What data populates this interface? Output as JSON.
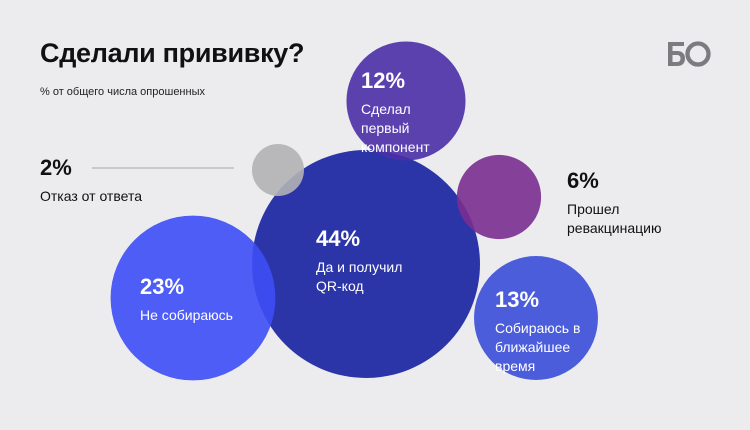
{
  "header": {
    "title": "Сделали прививку?",
    "subtitle": "% от общего числа опрошенных",
    "logo_text": "БО"
  },
  "chart_data": {
    "type": "bubble",
    "title": "Сделали прививку?",
    "subtitle": "% от общего числа опрошенных",
    "unit": "%",
    "legend": "none",
    "categories": [
      "Да и получил QR-код",
      "Не собираюсь",
      "Собираюсь в ближайшее время",
      "Сделал первый компонент",
      "Прошел ревакцинацию",
      "Отказ от ответа"
    ],
    "values": [
      44,
      23,
      13,
      12,
      6,
      2
    ],
    "labels": [
      "44%",
      "23%",
      "13%",
      "12%",
      "6%",
      "2%"
    ],
    "texts": [
      "Да и получил\nQR-код",
      "Не собираюсь",
      "Собираюсь\nв ближайшее\nвремя",
      "Сделал\nпервый\nкомпонент",
      "Прошел\nревакцинацию",
      "Отказ от ответа"
    ],
    "colors": [
      "#2b35a8",
      "#3d4ef5",
      "#3a4ed8",
      "#4a2fa6",
      "#7a2d8f",
      "#b3b3b5"
    ]
  }
}
